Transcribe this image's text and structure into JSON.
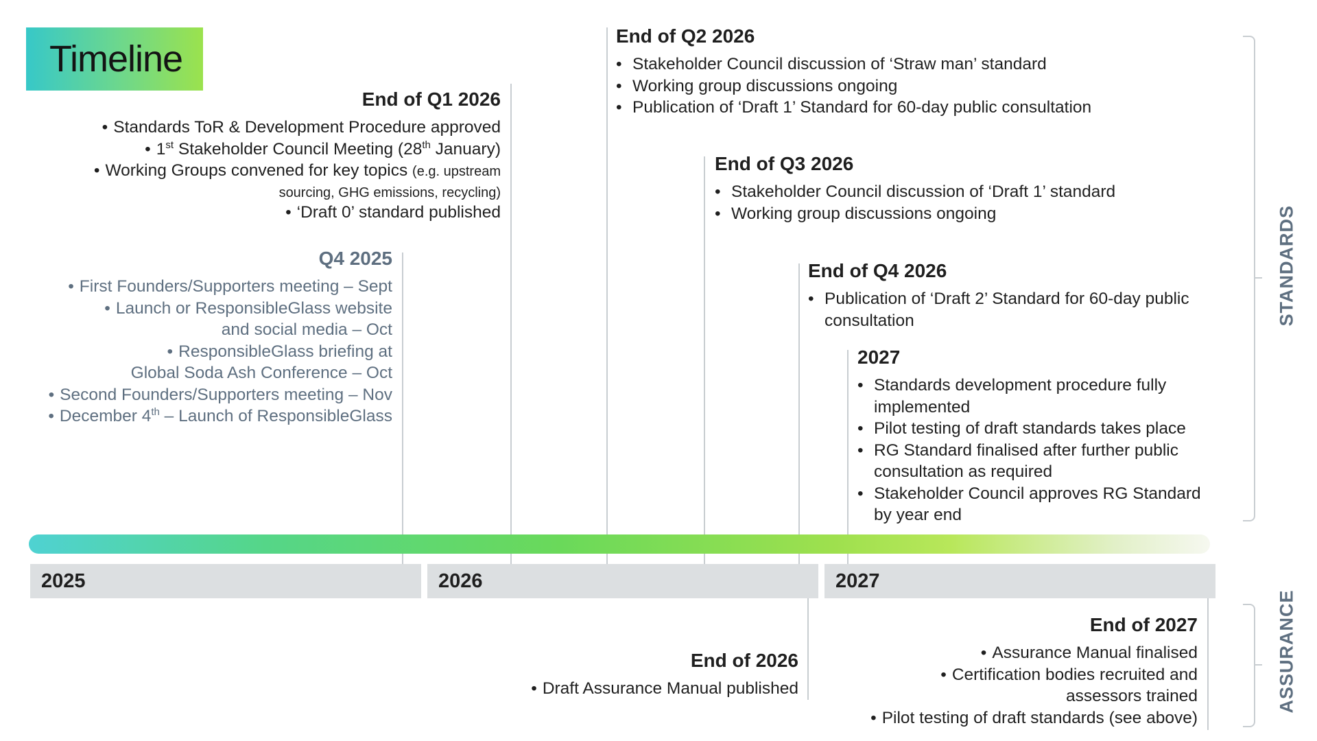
{
  "title": "Timeline",
  "standards_label": "STANDARDS",
  "assurance_label": "ASSURANCE",
  "years": [
    "2025",
    "2026",
    "2027"
  ],
  "q4_2025": {
    "heading": "Q4 2025",
    "items": [
      "First Founders/Supporters meeting – Sept",
      "Launch or ResponsibleGlass website",
      "and social media – Oct",
      "ResponsibleGlass briefing at",
      "Global Soda Ash Conference – Oct",
      "Second Founders/Supporters meeting – Nov",
      "December 4",
      "th",
      "– Launch of ResponsibleGlass"
    ]
  },
  "q1_2026": {
    "heading": "End of Q1 2026",
    "items": [
      "Standards ToR & Development Procedure approved",
      "1",
      "st",
      "Stakeholder Council Meeting (28",
      "th",
      "January)",
      "Working Groups convened for key topics",
      "(e.g. upstream",
      "sourcing, GHG emissions, recycling)",
      "‘Draft 0’ standard published"
    ]
  },
  "q2_2026": {
    "heading": "End of Q2 2026",
    "items": [
      "Stakeholder Council discussion of ‘Straw man’ standard",
      "Working group discussions ongoing",
      "Publication of ‘Draft 1’ Standard for 60-day public consultation"
    ]
  },
  "q3_2026": {
    "heading": "End of Q3 2026",
    "items": [
      "Stakeholder Council discussion of ‘Draft 1’ standard",
      "Working group discussions ongoing"
    ]
  },
  "q4_2026": {
    "heading": "End of Q4 2026",
    "items": [
      "Publication of ‘Draft 2’ Standard for 60-day public consultation"
    ]
  },
  "y2027": {
    "heading": "2027",
    "items": [
      "Standards development procedure fully implemented",
      "Pilot testing of draft standards takes place",
      "RG Standard finalised after further public consultation as required",
      "Stakeholder Council approves RG Standard by year end"
    ]
  },
  "end_2026": {
    "heading": "End of 2026",
    "items": [
      "Draft Assurance Manual published"
    ]
  },
  "end_2027": {
    "heading": "End of 2027",
    "items": [
      "Assurance Manual finalised",
      "Certification bodies recruited and",
      "assessors trained",
      "Pilot testing of draft standards (see above)"
    ]
  }
}
